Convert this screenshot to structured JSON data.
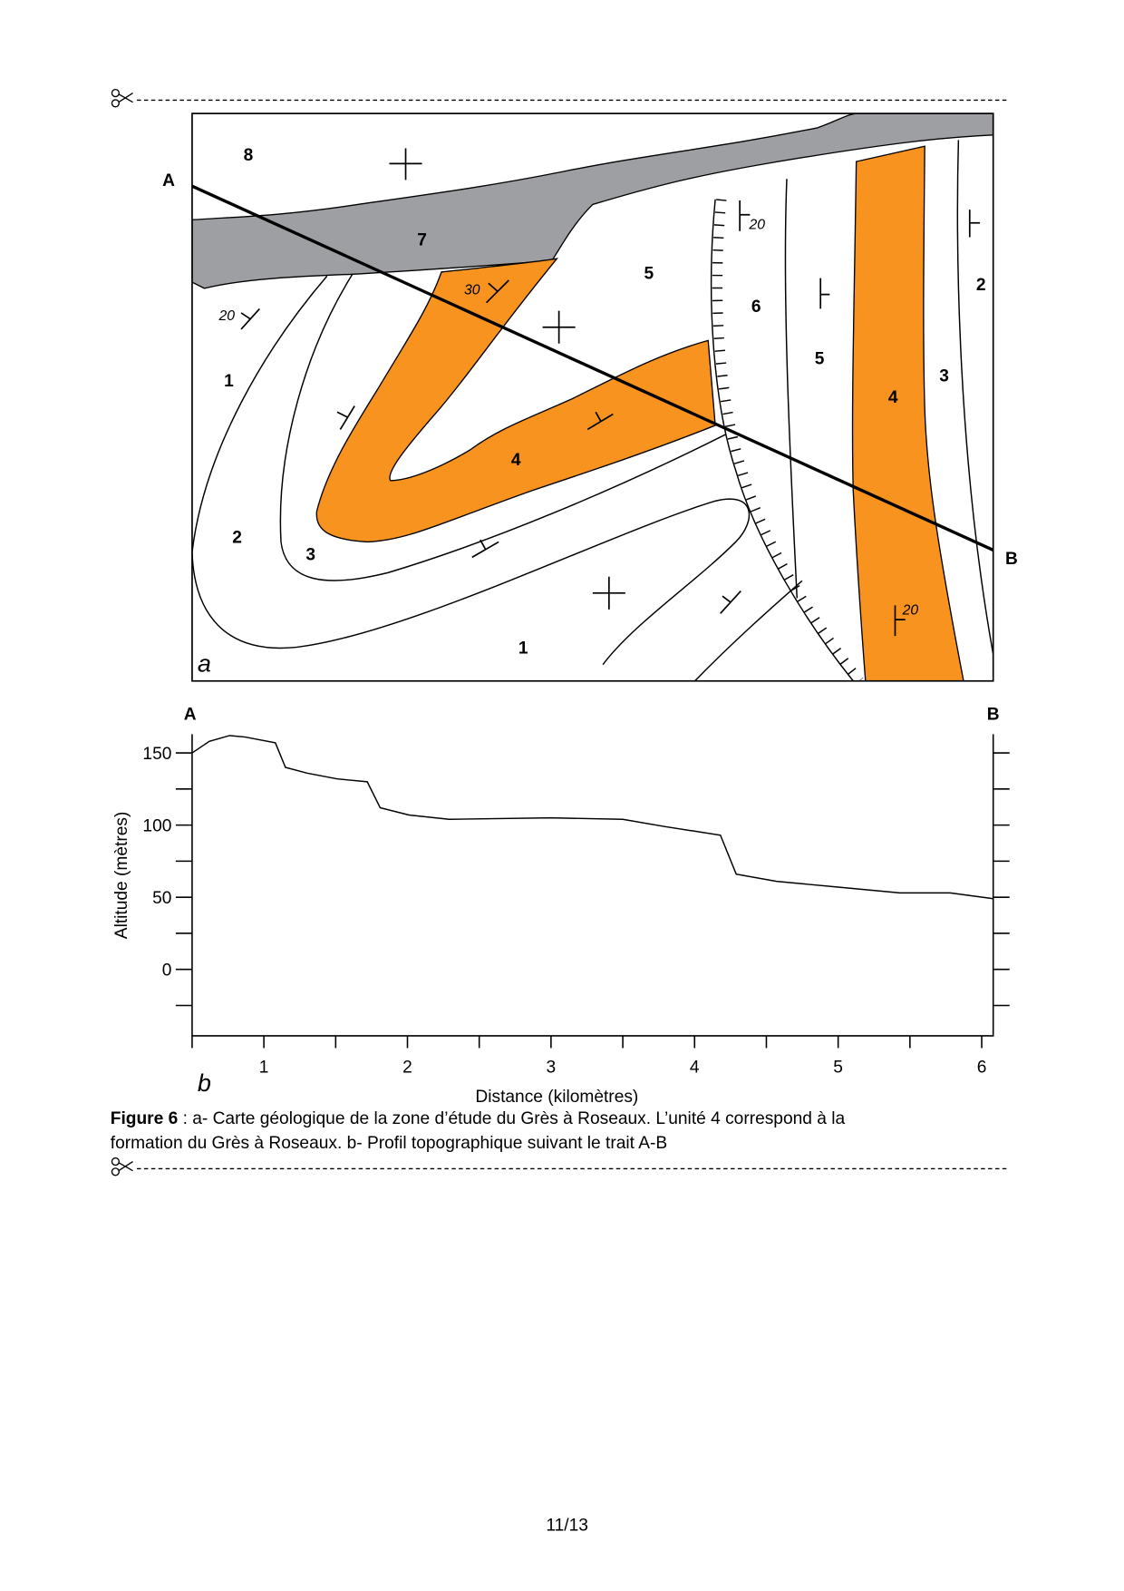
{
  "map": {
    "unit_labels": [
      "8",
      "7",
      "5",
      "6",
      "5",
      "4",
      "3",
      "2",
      "1",
      "2",
      "3",
      "4",
      "1"
    ],
    "dip_labels": [
      "30",
      "20",
      "20",
      "20"
    ],
    "section_labels": [
      "A",
      "B"
    ],
    "panel_label": "a"
  },
  "profile": {
    "type": "line",
    "start_label": "A",
    "end_label": "B",
    "panel_label": "b",
    "y_label": "Altitude (mètres)",
    "x_label": "Distance (kilomètres)",
    "x": [
      0.5,
      0.62,
      0.76,
      0.87,
      1.08,
      1.15,
      1.3,
      1.51,
      1.72,
      1.81,
      2.01,
      2.29,
      3.0,
      3.5,
      3.79,
      4.18,
      4.29,
      4.57,
      5.0,
      5.43,
      5.78,
      6.08
    ],
    "values": [
      150,
      158,
      162,
      161,
      157,
      140,
      136,
      132,
      130,
      112,
      107,
      104,
      105,
      104,
      99,
      93,
      66,
      61,
      57,
      53,
      53,
      49
    ],
    "xlim": [
      0.5,
      6.08
    ],
    "ylim": [
      -46,
      163
    ],
    "xticks": [
      1,
      2,
      3,
      4,
      5,
      6
    ],
    "yticks": [
      0,
      50,
      100,
      150
    ],
    "xticks_minor": [
      0.5,
      1.5,
      2.5,
      3.5,
      4.5,
      5.5
    ],
    "yticks_minor": [
      -25,
      25,
      75,
      125
    ]
  },
  "caption": {
    "label": "Figure 6",
    "lines": [
      " : a- Carte géologique de la zone d’étude du Grès à Roseaux. L’unité 4 correspond à la",
      "formation du Grès à Roseaux. b- Profil topographique suivant le trait A-B"
    ]
  },
  "footer": {
    "page": "11/13"
  }
}
